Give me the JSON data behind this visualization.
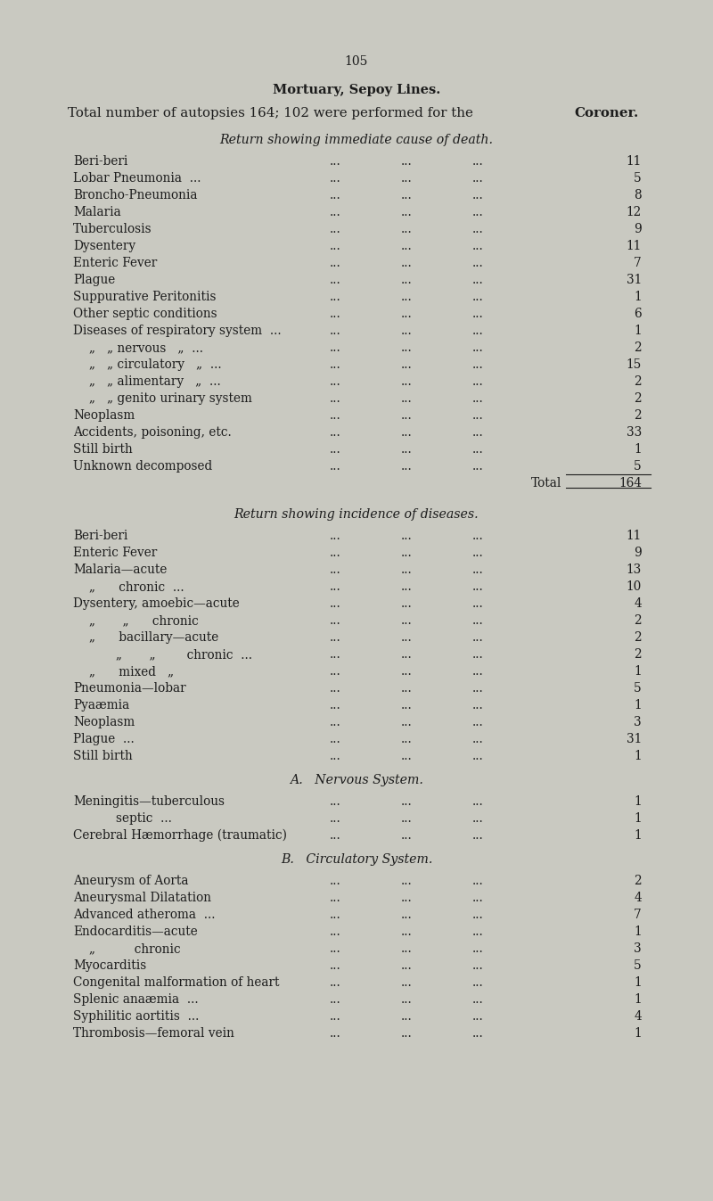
{
  "page_number": "105",
  "title": "Mortuary, Sepoy Lines.",
  "subtitle_normal": "Total number of autopsies 164; 102 were performed for the ",
  "subtitle_bold": "Coroner.",
  "section1_header": "Return showing immediate cause of death.",
  "section1_rows": [
    {
      "label": "Beri-beri",
      "indent": 0,
      "value": "11"
    },
    {
      "label": "Lobar Pneumonia  ...",
      "indent": 0,
      "value": "5"
    },
    {
      "label": "Broncho-Pneumonia",
      "indent": 0,
      "value": "8"
    },
    {
      "label": "Malaria",
      "indent": 0,
      "value": "12"
    },
    {
      "label": "Tuberculosis",
      "indent": 0,
      "value": "9"
    },
    {
      "label": "Dysentery",
      "indent": 0,
      "value": "11"
    },
    {
      "label": "Enteric Fever",
      "indent": 0,
      "value": "7"
    },
    {
      "label": "Plague",
      "indent": 0,
      "value": "31"
    },
    {
      "label": "Suppurative Peritonitis",
      "indent": 0,
      "value": "1"
    },
    {
      "label": "Other septic conditions",
      "indent": 0,
      "value": "6"
    },
    {
      "label": "Diseases of respiratory system  ...",
      "indent": 0,
      "value": "1"
    },
    {
      "label": "„   „ nervous   „  ...",
      "indent": 1,
      "value": "2"
    },
    {
      "label": "„   „ circulatory   „  ...",
      "indent": 1,
      "value": "15"
    },
    {
      "label": "„   „ alimentary   „  ...",
      "indent": 1,
      "value": "2"
    },
    {
      "label": "„   „ genito urinary system",
      "indent": 1,
      "value": "2"
    },
    {
      "label": "Neoplasm",
      "indent": 0,
      "value": "2"
    },
    {
      "label": "Accidents, poisoning, etc.",
      "indent": 0,
      "value": "33"
    },
    {
      "label": "Still birth",
      "indent": 0,
      "value": "1"
    },
    {
      "label": "Unknown decomposed",
      "indent": 0,
      "value": "5"
    }
  ],
  "total_label": "Total",
  "total_value": "164",
  "section2_header": "Return showing incidence of diseases.",
  "section2_rows": [
    {
      "label": "Beri-beri",
      "indent": 0,
      "value": "11"
    },
    {
      "label": "Enteric Fever",
      "indent": 0,
      "value": "9"
    },
    {
      "label": "Malaria—acute",
      "indent": 0,
      "value": "13"
    },
    {
      "label": "„      chronic  ...",
      "indent": 1,
      "value": "10"
    },
    {
      "label": "Dysentery, amoebic—acute",
      "indent": 0,
      "value": "4"
    },
    {
      "label": "„       „      chronic",
      "indent": 1,
      "value": "2"
    },
    {
      "label": "„      bacillary—acute",
      "indent": 1,
      "value": "2"
    },
    {
      "label": "„       „        chronic  ...",
      "indent": 2,
      "value": "2"
    },
    {
      "label": "„      mixed   „",
      "indent": 1,
      "value": "1"
    },
    {
      "label": "Pneumonia—lobar",
      "indent": 0,
      "value": "5"
    },
    {
      "label": "Pyaæmia",
      "indent": 0,
      "value": "1"
    },
    {
      "label": "Neoplasm",
      "indent": 0,
      "value": "3"
    },
    {
      "label": "Plague  ...",
      "indent": 0,
      "value": "31"
    },
    {
      "label": "Still birth",
      "indent": 0,
      "value": "1"
    }
  ],
  "section3_header": "A.   Nervous System.",
  "section3_rows": [
    {
      "label": "Meningitis—tuberculous",
      "indent": 0,
      "value": "1"
    },
    {
      "label": "septic  ...",
      "indent": 2,
      "value": "1"
    },
    {
      "label": "Cerebral Hæmorrhage (traumatic)",
      "indent": 0,
      "value": "1"
    }
  ],
  "section4_header": "B.   Circulatory System.",
  "section4_rows": [
    {
      "label": "Aneurysm of Aorta",
      "indent": 0,
      "value": "2"
    },
    {
      "label": "Aneurysmal Dilatation",
      "indent": 0,
      "value": "4"
    },
    {
      "label": "Advanced atheroma  ...",
      "indent": 0,
      "value": "7"
    },
    {
      "label": "Endocarditis—acute",
      "indent": 0,
      "value": "1"
    },
    {
      "label": "„          chronic",
      "indent": 1,
      "value": "3"
    },
    {
      "label": "Myocarditis",
      "indent": 0,
      "value": "5"
    },
    {
      "label": "Congenital malformation of heart",
      "indent": 0,
      "value": "1"
    },
    {
      "label": "Splenic anaæmia  ...",
      "indent": 0,
      "value": "1"
    },
    {
      "label": "Syphilitic aortitis  ...",
      "indent": 0,
      "value": "4"
    },
    {
      "label": "Thrombosis—femoral vein",
      "indent": 0,
      "value": "1"
    }
  ],
  "bg_color": "#c9c9c1",
  "text_color": "#1c1c1c",
  "font_size_body": 9.8,
  "font_size_header": 10.2,
  "font_size_title": 10.5,
  "font_size_page": 10.0,
  "font_size_subtitle": 10.8
}
